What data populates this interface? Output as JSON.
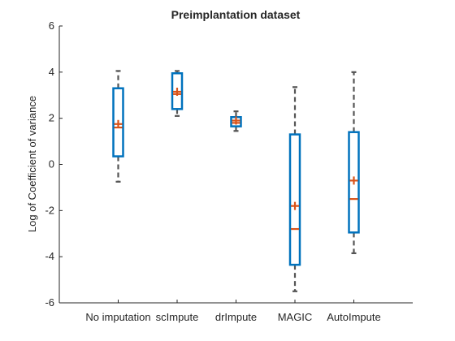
{
  "chart_data": {
    "type": "box",
    "title": "Preimplantation dataset",
    "xlabel": "",
    "ylabel": "Log of Coefficient of variance",
    "ylim": [
      -6,
      6
    ],
    "yticks": [
      -6,
      -4,
      -2,
      0,
      2,
      4,
      6
    ],
    "grid": false,
    "categories": [
      "No imputation",
      "scImpute",
      "drImpute",
      "MAGIC",
      "AutoImpute"
    ],
    "boxes": [
      {
        "category": "No imputation",
        "whisker_low": -0.75,
        "q1": 0.35,
        "median": 1.6,
        "mean": 1.75,
        "q3": 3.3,
        "whisker_high": 4.05
      },
      {
        "category": "scImpute",
        "whisker_low": 2.1,
        "q1": 2.4,
        "median": 3.05,
        "mean": 3.15,
        "q3": 3.95,
        "whisker_high": 4.05
      },
      {
        "category": "drImpute",
        "whisker_low": 1.45,
        "q1": 1.65,
        "median": 1.8,
        "mean": 1.9,
        "q3": 2.05,
        "whisker_high": 2.3
      },
      {
        "category": "MAGIC",
        "whisker_low": -5.5,
        "q1": -4.35,
        "median": -2.8,
        "mean": -1.8,
        "q3": 1.3,
        "whisker_high": 3.35
      },
      {
        "category": "AutoImpute",
        "whisker_low": -3.85,
        "q1": -2.95,
        "median": -1.5,
        "mean": -0.7,
        "q3": 1.4,
        "whisker_high": 4.0
      }
    ],
    "colors": {
      "box": "#0072BD",
      "whisker": "#555555",
      "median": "#D95319",
      "mean": "#D95319",
      "axis": "#262626"
    }
  }
}
